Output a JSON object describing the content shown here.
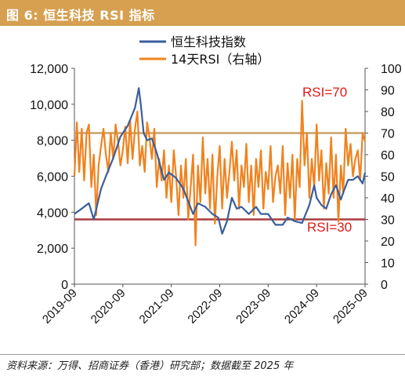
{
  "header": {
    "title": "图 6:  恒生科技 RSI 指标"
  },
  "source": "资料来源：万得、招商证券（香港）研究部；数据截至 2025 年",
  "colors": {
    "title_bg": "#D6A050",
    "index_line": "#3A5E9C",
    "rsi_line": "#F0821E",
    "rsi70_line": "#C9A26A",
    "rsi30_line": "#A83C3C",
    "annotation": "#E01818"
  },
  "chart_data": {
    "type": "line",
    "x_ticks": [
      "2019-09",
      "2020-09",
      "2021-09",
      "2022-09",
      "2023-09",
      "2024-09",
      "2025-09"
    ],
    "left_axis": {
      "min": 0,
      "max": 12000,
      "ticks": [
        "0",
        "2,000",
        "4,000",
        "6,000",
        "8,000",
        "10,000",
        "12,000"
      ]
    },
    "right_axis": {
      "min": 0,
      "max": 100,
      "ticks": [
        "0",
        "10",
        "20",
        "30",
        "40",
        "50",
        "60",
        "70",
        "80",
        "90",
        "100"
      ]
    },
    "legend": [
      "恒生科技指数",
      "14天RSI（右轴）"
    ],
    "annotations": {
      "upper": "RSI=70",
      "lower": "RSI=30"
    },
    "reference_lines": [
      70,
      30
    ],
    "series": [
      {
        "name": "恒生科技指数",
        "axis": "left",
        "x": [
          2019.75,
          2019.9,
          2020.05,
          2020.15,
          2020.22,
          2020.3,
          2020.4,
          2020.55,
          2020.7,
          2020.85,
          2021.0,
          2021.08,
          2021.12,
          2021.18,
          2021.25,
          2021.35,
          2021.45,
          2021.55,
          2021.6,
          2021.7,
          2021.85,
          2022.0,
          2022.1,
          2022.2,
          2022.3,
          2022.45,
          2022.6,
          2022.72,
          2022.8,
          2022.9,
          2023.0,
          2023.1,
          2023.2,
          2023.35,
          2023.5,
          2023.6,
          2023.75,
          2023.9,
          2024.05,
          2024.15,
          2024.3,
          2024.45,
          2024.6,
          2024.7,
          2024.75,
          2024.85,
          2024.95,
          2025.05,
          2025.15,
          2025.25,
          2025.3,
          2025.4,
          2025.5,
          2025.6,
          2025.7,
          2025.75
        ],
        "values": [
          3900,
          4200,
          4500,
          3600,
          4400,
          5300,
          6000,
          7000,
          8200,
          8800,
          9800,
          10900,
          10000,
          8400,
          8000,
          8100,
          7300,
          6300,
          5800,
          6200,
          5900,
          5300,
          4600,
          3900,
          4500,
          4300,
          3900,
          3700,
          2800,
          3500,
          4800,
          4200,
          4300,
          3900,
          4300,
          3900,
          3900,
          3300,
          3300,
          3700,
          3500,
          3400,
          4400,
          5500,
          4800,
          4400,
          4200,
          5000,
          5500,
          4700,
          5100,
          5800,
          5800,
          6000,
          5600,
          6200
        ]
      },
      {
        "name": "14天RSI（右轴）",
        "axis": "right",
        "x": [
          2019.75,
          2019.8,
          2019.85,
          2019.9,
          2019.95,
          2020.0,
          2020.05,
          2020.1,
          2020.15,
          2020.2,
          2020.25,
          2020.3,
          2020.35,
          2020.4,
          2020.45,
          2020.5,
          2020.55,
          2020.6,
          2020.65,
          2020.7,
          2020.75,
          2020.8,
          2020.85,
          2020.9,
          2020.95,
          2021.0,
          2021.05,
          2021.1,
          2021.15,
          2021.2,
          2021.25,
          2021.3,
          2021.35,
          2021.4,
          2021.45,
          2021.5,
          2021.55,
          2021.6,
          2021.65,
          2021.7,
          2021.75,
          2021.8,
          2021.85,
          2021.9,
          2021.95,
          2022.0,
          2022.05,
          2022.1,
          2022.15,
          2022.2,
          2022.25,
          2022.3,
          2022.35,
          2022.4,
          2022.45,
          2022.5,
          2022.55,
          2022.6,
          2022.65,
          2022.7,
          2022.75,
          2022.8,
          2022.85,
          2022.9,
          2022.95,
          2023.0,
          2023.05,
          2023.1,
          2023.15,
          2023.2,
          2023.25,
          2023.3,
          2023.35,
          2023.4,
          2023.45,
          2023.5,
          2023.55,
          2023.6,
          2023.65,
          2023.7,
          2023.75,
          2023.8,
          2023.85,
          2023.9,
          2023.95,
          2024.0,
          2024.05,
          2024.1,
          2024.15,
          2024.2,
          2024.25,
          2024.3,
          2024.35,
          2024.4,
          2024.45,
          2024.5,
          2024.55,
          2024.6,
          2024.65,
          2024.7,
          2024.75,
          2024.8,
          2024.85,
          2024.9,
          2024.95,
          2025.0,
          2025.05,
          2025.1,
          2025.15,
          2025.2,
          2025.25,
          2025.3,
          2025.35,
          2025.4,
          2025.45,
          2025.5,
          2025.55,
          2025.6,
          2025.65,
          2025.7,
          2025.75
        ],
        "values": [
          50,
          75,
          52,
          72,
          48,
          70,
          74,
          45,
          60,
          32,
          55,
          64,
          72,
          60,
          52,
          70,
          58,
          74,
          66,
          55,
          62,
          73,
          56,
          76,
          58,
          72,
          80,
          55,
          64,
          52,
          75,
          68,
          58,
          72,
          45,
          58,
          48,
          62,
          40,
          55,
          38,
          62,
          50,
          32,
          55,
          40,
          58,
          30,
          45,
          60,
          18,
          55,
          38,
          68,
          42,
          58,
          35,
          60,
          28,
          50,
          64,
          35,
          58,
          40,
          52,
          66,
          48,
          62,
          35,
          55,
          45,
          65,
          38,
          55,
          32,
          58,
          45,
          62,
          35,
          52,
          44,
          64,
          38,
          50,
          55,
          42,
          64,
          32,
          56,
          40,
          60,
          30,
          58,
          45,
          85,
          55,
          70,
          40,
          58,
          45,
          74,
          48,
          62,
          35,
          56,
          42,
          68,
          40,
          60,
          29,
          55,
          42,
          72,
          55,
          65,
          50,
          58,
          62,
          48,
          70,
          66
        ]
      }
    ]
  }
}
